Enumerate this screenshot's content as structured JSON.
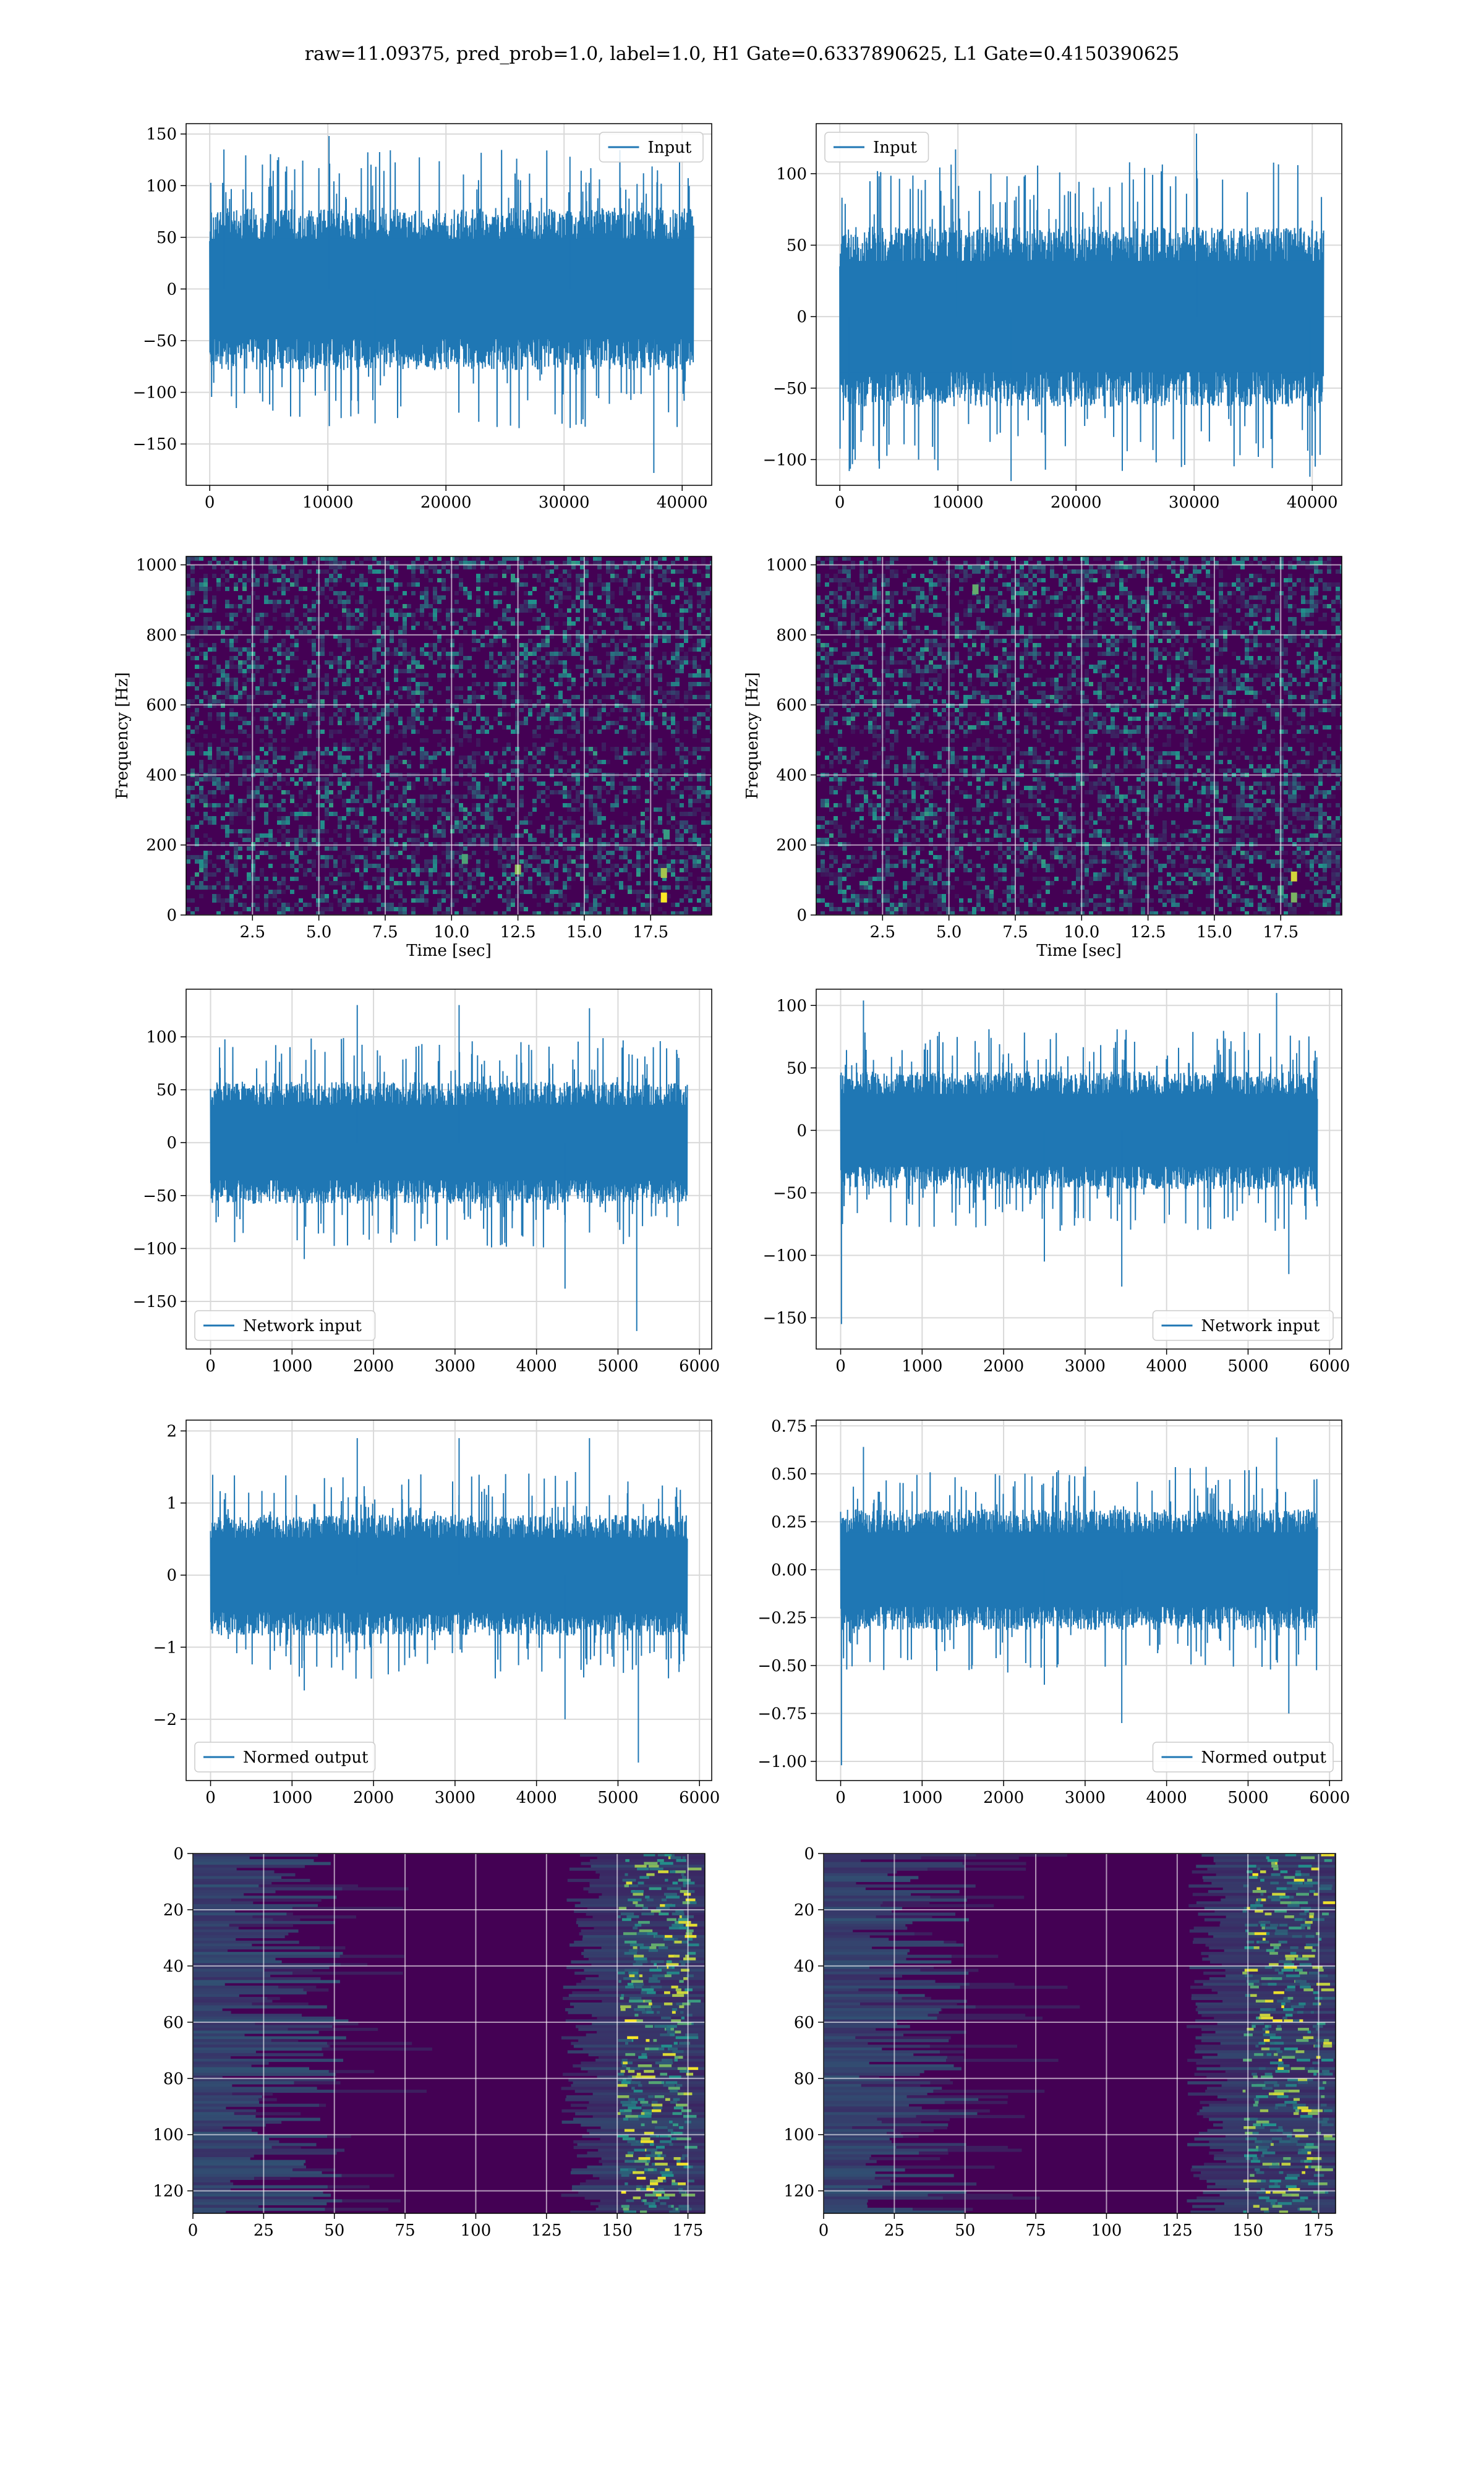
{
  "figure": {
    "title": "raw=11.09375, pred_prob=1.0, label=1.0, H1 Gate=0.6337890625, L1 Gate=0.4150390625"
  },
  "colors": {
    "line": "#1f77b4",
    "grid": "#d9d9d9",
    "viridis_low": "#440154",
    "viridis_mid": "#21918c",
    "viridis_high": "#fde725"
  },
  "chart_data": [
    {
      "id": "input-h1",
      "type": "line",
      "legend": [
        "Input"
      ],
      "legend_loc": "upper-right",
      "xlim": [
        -2000,
        42500
      ],
      "ylim": [
        -190,
        160
      ],
      "xticks": [
        0,
        10000,
        20000,
        30000,
        40000
      ],
      "xtick_labels": [
        "0",
        "10000",
        "20000",
        "30000",
        "40000"
      ],
      "yticks": [
        -150,
        -100,
        -50,
        0,
        50,
        100,
        150
      ],
      "ytick_labels": [
        "−150",
        "−100",
        "−50",
        "0",
        "50",
        "100",
        "150"
      ],
      "xlabel": "",
      "ylabel": "",
      "grid": true,
      "x_range": [
        0,
        40960
      ],
      "noise_band": [
        -75,
        75
      ],
      "peaks": [
        [
          1200,
          135
        ],
        [
          10100,
          148
        ],
        [
          37600,
          -178
        ],
        [
          14000,
          -130
        ],
        [
          30500,
          128
        ]
      ]
    },
    {
      "id": "input-l1",
      "type": "line",
      "legend": [
        "Input"
      ],
      "legend_loc": "upper-left",
      "xlim": [
        -2000,
        42500
      ],
      "ylim": [
        -118,
        135
      ],
      "xticks": [
        0,
        10000,
        20000,
        30000,
        40000
      ],
      "xtick_labels": [
        "0",
        "10000",
        "20000",
        "30000",
        "40000"
      ],
      "yticks": [
        -100,
        -50,
        0,
        50,
        100
      ],
      "ytick_labels": [
        "−100",
        "−50",
        "0",
        "50",
        "100"
      ],
      "xlabel": "",
      "ylabel": "",
      "grid": true,
      "x_range": [
        0,
        40960
      ],
      "noise_band": [
        -60,
        60
      ],
      "peaks": [
        [
          30200,
          128
        ],
        [
          9800,
          117
        ],
        [
          14500,
          -115
        ],
        [
          39800,
          -112
        ],
        [
          800,
          -108
        ]
      ]
    },
    {
      "id": "spectrogram-h1",
      "type": "heatmap",
      "xlim": [
        0,
        19.8
      ],
      "ylim": [
        0,
        1024
      ],
      "xticks": [
        2.5,
        5,
        7.5,
        10,
        12.5,
        15,
        17.5
      ],
      "xtick_labels": [
        "2.5",
        "5.0",
        "7.5",
        "10.0",
        "12.5",
        "15.0",
        "17.5"
      ],
      "yticks": [
        0,
        200,
        400,
        600,
        800,
        1000
      ],
      "ytick_labels": [
        "0",
        "200",
        "400",
        "600",
        "800",
        "1000"
      ],
      "xlabel": "Time [sec]",
      "ylabel": "Frequency [Hz]",
      "grid": true,
      "hotspots": [
        [
          18.0,
          50,
          1.0
        ],
        [
          18.0,
          120,
          0.8
        ],
        [
          12.5,
          130,
          0.75
        ],
        [
          10.5,
          160,
          0.6
        ],
        [
          18.1,
          230,
          0.55
        ]
      ]
    },
    {
      "id": "spectrogram-l1",
      "type": "heatmap",
      "xlim": [
        0,
        19.8
      ],
      "ylim": [
        0,
        1024
      ],
      "xticks": [
        2.5,
        5,
        7.5,
        10,
        12.5,
        15,
        17.5
      ],
      "xtick_labels": [
        "2.5",
        "5.0",
        "7.5",
        "10.0",
        "12.5",
        "15.0",
        "17.5"
      ],
      "yticks": [
        0,
        200,
        400,
        600,
        800,
        1000
      ],
      "ytick_labels": [
        "0",
        "200",
        "400",
        "600",
        "800",
        "1000"
      ],
      "xlabel": "Time [sec]",
      "ylabel": "Frequency [Hz]",
      "grid": true,
      "hotspots": [
        [
          18.0,
          110,
          0.9
        ],
        [
          18.0,
          50,
          0.7
        ],
        [
          6.0,
          930,
          0.65
        ],
        [
          17.5,
          70,
          0.55
        ]
      ]
    },
    {
      "id": "network-input-h1",
      "type": "line",
      "legend": [
        "Network input"
      ],
      "legend_loc": "lower-left",
      "xlim": [
        -300,
        6150
      ],
      "ylim": [
        -195,
        145
      ],
      "xticks": [
        0,
        1000,
        2000,
        3000,
        4000,
        5000,
        6000
      ],
      "xtick_labels": [
        "0",
        "1000",
        "2000",
        "3000",
        "4000",
        "5000",
        "6000"
      ],
      "yticks": [
        -150,
        -100,
        -50,
        0,
        50,
        100
      ],
      "ytick_labels": [
        "−150",
        "−100",
        "−50",
        "0",
        "50",
        "100"
      ],
      "xlabel": "",
      "ylabel": "",
      "grid": true,
      "x_range": [
        0,
        5850
      ],
      "noise_band": [
        -55,
        55
      ],
      "peaks": [
        [
          5230,
          -178
        ],
        [
          1800,
          130
        ],
        [
          3050,
          130
        ],
        [
          4650,
          127
        ],
        [
          4350,
          -138
        ],
        [
          1150,
          -110
        ]
      ]
    },
    {
      "id": "network-input-l1",
      "type": "line",
      "legend": [
        "Network input"
      ],
      "legend_loc": "lower-right",
      "xlim": [
        -300,
        6150
      ],
      "ylim": [
        -175,
        113
      ],
      "xticks": [
        0,
        1000,
        2000,
        3000,
        4000,
        5000,
        6000
      ],
      "xtick_labels": [
        "0",
        "1000",
        "2000",
        "3000",
        "4000",
        "5000",
        "6000"
      ],
      "yticks": [
        -150,
        -100,
        -50,
        0,
        50,
        100
      ],
      "ytick_labels": [
        "−150",
        "−100",
        "−50",
        "0",
        "50",
        "100"
      ],
      "xlabel": "",
      "ylabel": "",
      "grid": true,
      "x_range": [
        0,
        5850
      ],
      "noise_band": [
        -45,
        45
      ],
      "peaks": [
        [
          10,
          -155
        ],
        [
          280,
          104
        ],
        [
          5350,
          110
        ],
        [
          3450,
          -125
        ],
        [
          5500,
          -115
        ],
        [
          2500,
          -105
        ]
      ]
    },
    {
      "id": "normed-output-h1",
      "type": "line",
      "legend": [
        "Normed output"
      ],
      "legend_loc": "lower-left",
      "xlim": [
        -300,
        6150
      ],
      "ylim": [
        -2.85,
        2.15
      ],
      "xticks": [
        0,
        1000,
        2000,
        3000,
        4000,
        5000,
        6000
      ],
      "xtick_labels": [
        "0",
        "1000",
        "2000",
        "3000",
        "4000",
        "5000",
        "6000"
      ],
      "yticks": [
        -2,
        -1,
        0,
        1,
        2
      ],
      "ytick_labels": [
        "−2",
        "−1",
        "0",
        "1",
        "2"
      ],
      "xlabel": "",
      "ylabel": "",
      "grid": true,
      "x_range": [
        0,
        5850
      ],
      "noise_band": [
        -0.8,
        0.8
      ],
      "peaks": [
        [
          5250,
          -2.6
        ],
        [
          1800,
          1.9
        ],
        [
          3050,
          1.9
        ],
        [
          4650,
          1.9
        ],
        [
          4350,
          -2.0
        ],
        [
          1150,
          -1.6
        ]
      ]
    },
    {
      "id": "normed-output-l1",
      "type": "line",
      "legend": [
        "Normed output"
      ],
      "legend_loc": "lower-right",
      "xlim": [
        -300,
        6150
      ],
      "ylim": [
        -1.1,
        0.78
      ],
      "xticks": [
        0,
        1000,
        2000,
        3000,
        4000,
        5000,
        6000
      ],
      "xtick_labels": [
        "0",
        "1000",
        "2000",
        "3000",
        "4000",
        "5000",
        "6000"
      ],
      "yticks": [
        -1.0,
        -0.75,
        -0.5,
        -0.25,
        0,
        0.25,
        0.5,
        0.75
      ],
      "ytick_labels": [
        "−1.00",
        "−0.75",
        "−0.50",
        "−0.25",
        "0.00",
        "0.25",
        "0.50",
        "0.75"
      ],
      "xlabel": "",
      "ylabel": "",
      "grid": true,
      "x_range": [
        0,
        5850
      ],
      "noise_band": [
        -0.3,
        0.3
      ],
      "peaks": [
        [
          10,
          -1.02
        ],
        [
          280,
          0.64
        ],
        [
          5350,
          0.69
        ],
        [
          3450,
          -0.8
        ],
        [
          5500,
          -0.75
        ],
        [
          2500,
          -0.6
        ]
      ]
    },
    {
      "id": "features-h1",
      "type": "heatmap",
      "xlim": [
        0,
        181
      ],
      "ylim": [
        128,
        0
      ],
      "xticks": [
        0,
        25,
        50,
        75,
        100,
        125,
        150,
        175
      ],
      "xtick_labels": [
        "0",
        "25",
        "50",
        "75",
        "100",
        "125",
        "150",
        "175"
      ],
      "yticks": [
        0,
        20,
        40,
        60,
        80,
        100,
        120
      ],
      "ytick_labels": [
        "0",
        "20",
        "40",
        "60",
        "80",
        "100",
        "120"
      ],
      "xlabel": "",
      "ylabel": "",
      "grid": true,
      "active_band": [
        150,
        175
      ]
    },
    {
      "id": "features-l1",
      "type": "heatmap",
      "xlim": [
        0,
        181
      ],
      "ylim": [
        128,
        0
      ],
      "xticks": [
        0,
        25,
        50,
        75,
        100,
        125,
        150,
        175
      ],
      "xtick_labels": [
        "0",
        "25",
        "50",
        "75",
        "100",
        "125",
        "150",
        "175"
      ],
      "yticks": [
        0,
        20,
        40,
        60,
        80,
        100,
        120
      ],
      "ytick_labels": [
        "0",
        "20",
        "40",
        "60",
        "80",
        "100",
        "120"
      ],
      "xlabel": "",
      "ylabel": "",
      "grid": true,
      "active_band": [
        148,
        177
      ]
    }
  ]
}
